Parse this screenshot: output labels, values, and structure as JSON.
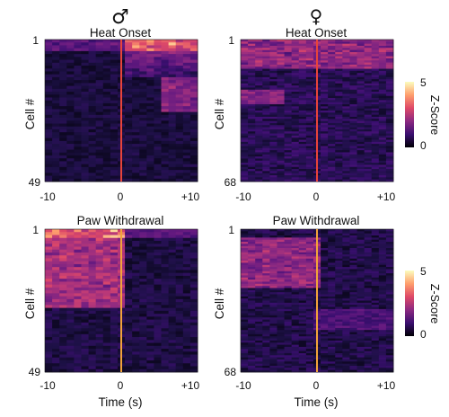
{
  "chart_data": [
    {
      "type": "heatmap",
      "sex_symbol": "♂",
      "title": "Heat Onset",
      "ylabel": "Cell #",
      "y_ticks": [
        "1",
        "49"
      ],
      "x_ticks": [
        "-10",
        "0",
        "+10"
      ],
      "xlim": [
        -10,
        10
      ],
      "cells": 49,
      "event_time": 0,
      "event_line_color": "#e8443a",
      "xlabel": ""
    },
    {
      "type": "heatmap",
      "sex_symbol": "♀",
      "title": "Heat Onset",
      "ylabel": "Cell #",
      "y_ticks": [
        "1",
        "68"
      ],
      "x_ticks": [
        "-10",
        "0",
        "+10"
      ],
      "xlim": [
        -10,
        10
      ],
      "cells": 68,
      "event_time": 0,
      "event_line_color": "#e8443a",
      "xlabel": ""
    },
    {
      "type": "heatmap",
      "title": "Paw Withdrawal",
      "ylabel": "Cell #",
      "y_ticks": [
        "1",
        "49"
      ],
      "x_ticks": [
        "-10",
        "0",
        "+10"
      ],
      "xlim": [
        -10,
        10
      ],
      "cells": 49,
      "event_time": 0,
      "event_line_color": "#f2a33a",
      "xlabel": "Time (s)"
    },
    {
      "type": "heatmap",
      "title": "Paw Withdrawal",
      "ylabel": "Cell #",
      "y_ticks": [
        "1",
        "68"
      ],
      "x_ticks": [
        "-10",
        "0",
        "+10"
      ],
      "xlim": [
        -10,
        10
      ],
      "cells": 68,
      "event_time": 0,
      "event_line_color": "#f2a33a",
      "xlabel": "Time (s)"
    }
  ],
  "colorbars": [
    {
      "label": "Z-Score",
      "ticks": [
        "5",
        "0"
      ],
      "range": [
        0,
        5
      ],
      "colors": [
        "#000004",
        "#3b0f70",
        "#8c2981",
        "#de4968",
        "#fe9f6d",
        "#fcfdbf"
      ]
    },
    {
      "label": "Z-Score",
      "ticks": [
        "5",
        "0"
      ],
      "range": [
        0,
        5
      ],
      "colors": [
        "#000004",
        "#3b0f70",
        "#8c2981",
        "#de4968",
        "#fe9f6d",
        "#fcfdbf"
      ]
    }
  ]
}
